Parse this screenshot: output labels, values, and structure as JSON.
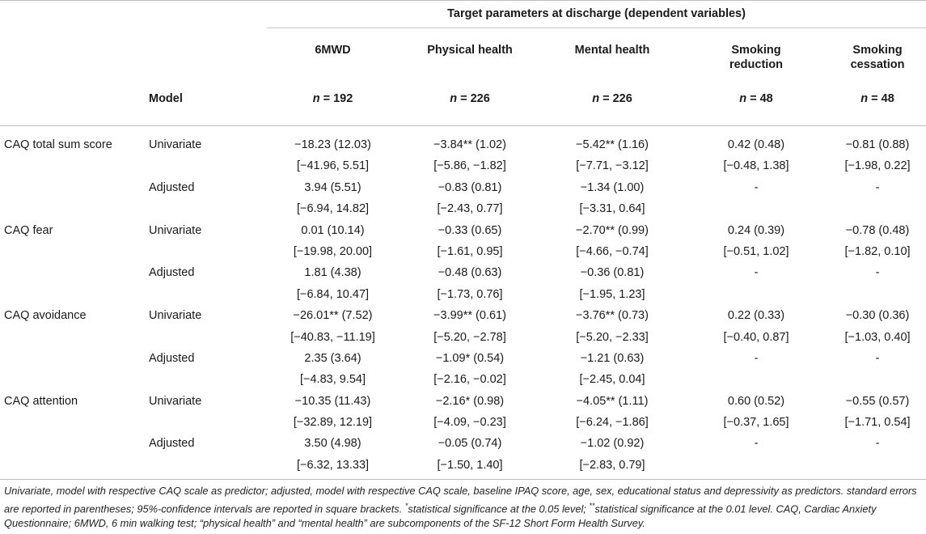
{
  "table": {
    "group_header": "Target parameters at discharge (dependent variables)",
    "model_header": "Model",
    "columns": [
      {
        "name": "6MWD",
        "n_label": "n",
        "n_eq": " = 192"
      },
      {
        "name": "Physical health",
        "n_label": "n",
        "n_eq": " = 226"
      },
      {
        "name": "Mental health",
        "n_label": "n",
        "n_eq": " = 226"
      },
      {
        "name": "Smoking reduction",
        "n_label": "n",
        "n_eq": " = 48"
      },
      {
        "name": "Smoking cessation",
        "n_label": "n",
        "n_eq": " = 48"
      }
    ],
    "rows": [
      {
        "predictor": "CAQ total sum score",
        "model": "Univariate",
        "cells": [
          "−18.23 (12.03)",
          "−3.84** (1.02)",
          "−5.42** (1.16)",
          "0.42 (0.48)",
          "−0.81 (0.88)"
        ]
      },
      {
        "predictor": "",
        "model": "",
        "cells": [
          "[−41.96, 5.51]",
          "[−5.86, −1.82]",
          "[−7.71, −3.12]",
          "[−0.48, 1.38]",
          "[−1.98, 0.22]"
        ]
      },
      {
        "predictor": "",
        "model": "Adjusted",
        "cells": [
          "3.94 (5.51)",
          "−0.83 (0.81)",
          "−1.34 (1.00)",
          "-",
          "-"
        ]
      },
      {
        "predictor": "",
        "model": "",
        "cells": [
          "[−6.94, 14.82]",
          "[−2.43, 0.77]",
          "[−3.31, 0.64]",
          "",
          ""
        ]
      },
      {
        "predictor": "CAQ fear",
        "model": "Univariate",
        "cells": [
          "0.01 (10.14)",
          "−0.33 (0.65)",
          "−2.70** (0.99)",
          "0.24 (0.39)",
          "−0.78 (0.48)"
        ]
      },
      {
        "predictor": "",
        "model": "",
        "cells": [
          "[−19.98, 20.00]",
          "[−1.61, 0.95]",
          "[−4.66, −0.74]",
          "[−0.51, 1.02]",
          "[−1.82, 0.10]"
        ]
      },
      {
        "predictor": "",
        "model": "Adjusted",
        "cells": [
          "1.81 (4.38)",
          "−0.48 (0.63)",
          "−0.36 (0.81)",
          "-",
          "-"
        ]
      },
      {
        "predictor": "",
        "model": "",
        "cells": [
          "[−6.84, 10.47]",
          "[−1.73, 0.76]",
          "[−1.95, 1.23]",
          "",
          ""
        ]
      },
      {
        "predictor": "CAQ avoidance",
        "model": "Univariate",
        "cells": [
          "−26.01** (7.52)",
          "−3.99** (0.61)",
          "−3.76** (0.73)",
          "0.22 (0.33)",
          "−0.30 (0.36)"
        ]
      },
      {
        "predictor": "",
        "model": "",
        "cells": [
          "[−40.83, −11.19]",
          "[−5.20, −2.78]",
          "[−5.20, −2.33]",
          "[−0.40, 0.87]",
          "[−1.03, 0.40]"
        ]
      },
      {
        "predictor": "",
        "model": "Adjusted",
        "cells": [
          "2.35 (3.64)",
          "−1.09* (0.54)",
          "−1.21 (0.63)",
          "-",
          "-"
        ]
      },
      {
        "predictor": "",
        "model": "",
        "cells": [
          "[−4.83, 9.54]",
          "[−2.16, −0.02]",
          "[−2.45, 0.04]",
          "",
          ""
        ]
      },
      {
        "predictor": "CAQ attention",
        "model": "Univariate",
        "cells": [
          "−10.35 (11.43)",
          "−2.16* (0.98)",
          "−4.05** (1.11)",
          "0.60 (0.52)",
          "−0.55 (0.57)"
        ]
      },
      {
        "predictor": "",
        "model": "",
        "cells": [
          "[−32.89, 12.19]",
          "[−4.09, −0.23]",
          "[−6.24, −1.86]",
          "[−0.37, 1.65]",
          "[−1.71, 0.54]"
        ]
      },
      {
        "predictor": "",
        "model": "Adjusted",
        "cells": [
          "3.50 (4.98)",
          "−0.05 (0.74)",
          "−1.02 (0.92)",
          "-",
          "-"
        ]
      },
      {
        "predictor": "",
        "model": "",
        "cells": [
          "[−6.32, 13.33]",
          "[−1.50, 1.40]",
          "[−2.83, 0.79]",
          "",
          ""
        ]
      }
    ]
  },
  "footnote": {
    "part1": "Univariate, model with respective CAQ scale as predictor; adjusted, model with respective CAQ scale, baseline IPAQ score, age, sex, educational status and depressivity as predictors. standard errors are reported in parentheses; 95%-confidence intervals are reported in square brackets. ",
    "sup1": "*",
    "part2": "statistical significance at the 0.05 level; ",
    "sup2": "**",
    "part3": "statistical significance at the 0.01 level. CAQ, Cardiac Anxiety Questionnaire; 6MWD, 6 min walking test; “physical health” and “mental health” are subcomponents of the SF-12 Short Form Health Survey."
  }
}
